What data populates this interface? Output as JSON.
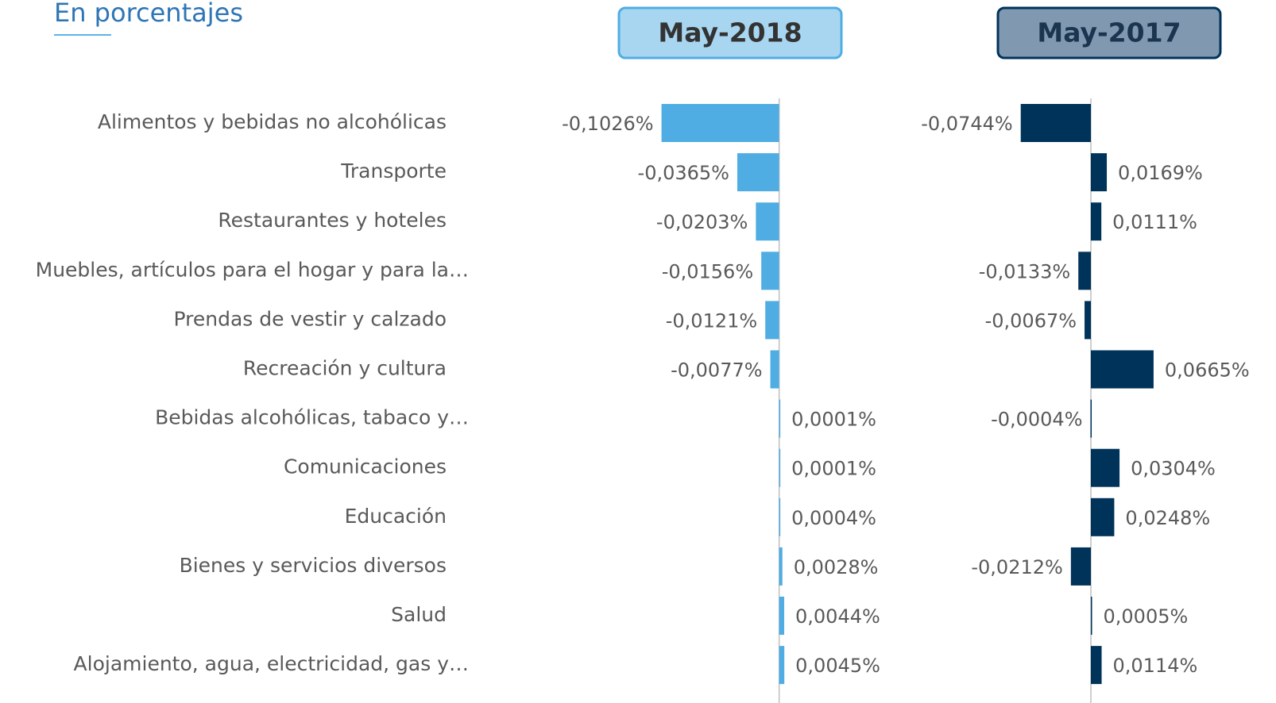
{
  "chart_data": {
    "type": "bar",
    "orientation": "horizontal",
    "subtitle": "En porcentajes",
    "categories": [
      "Alimentos y bebidas no alcohólicas",
      "Transporte",
      "Restaurantes y hoteles",
      "Muebles, artículos para el hogar y para la…",
      "Prendas de vestir y calzado",
      "Recreación y cultura",
      "Bebidas alcohólicas, tabaco y…",
      "Comunicaciones",
      "Educación",
      "Bienes y servicios diversos",
      "Salud",
      "Alojamiento, agua, electricidad, gas y…"
    ],
    "series": [
      {
        "name": "May-2018",
        "color": "#4fade3",
        "header_fill": "#a8d6f1",
        "xlim": [
          -0.2,
          0.1
        ],
        "values": [
          -0.1026,
          -0.0365,
          -0.0203,
          -0.0156,
          -0.0121,
          -0.0077,
          0.0001,
          0.0001,
          0.0004,
          0.0028,
          0.0044,
          0.0045
        ],
        "value_labels": [
          "-0,1026%",
          "-0,0365%",
          "-0,0203%",
          "-0,0156%",
          "-0,0121%",
          "-0,0077%",
          "0,0001%",
          "0,0001%",
          "0,0004%",
          "0,0028%",
          "0,0044%",
          "0,0045%"
        ]
      },
      {
        "name": "May-2017",
        "color": "#00335a",
        "header_fill": "#8099b0",
        "xlim": [
          -0.15,
          0.15
        ],
        "values": [
          -0.0744,
          0.0169,
          0.0111,
          -0.0133,
          -0.0067,
          0.0665,
          -0.0004,
          0.0304,
          0.0248,
          -0.0212,
          0.0005,
          0.0114
        ],
        "value_labels": [
          "-0,0744%",
          "0,0169%",
          "0,0111%",
          "-0,0133%",
          "-0,0067%",
          "0,0665%",
          "-0,0004%",
          "0,0304%",
          "0,0248%",
          "-0,0212%",
          "0,0005%",
          "0,0114%"
        ]
      }
    ]
  }
}
